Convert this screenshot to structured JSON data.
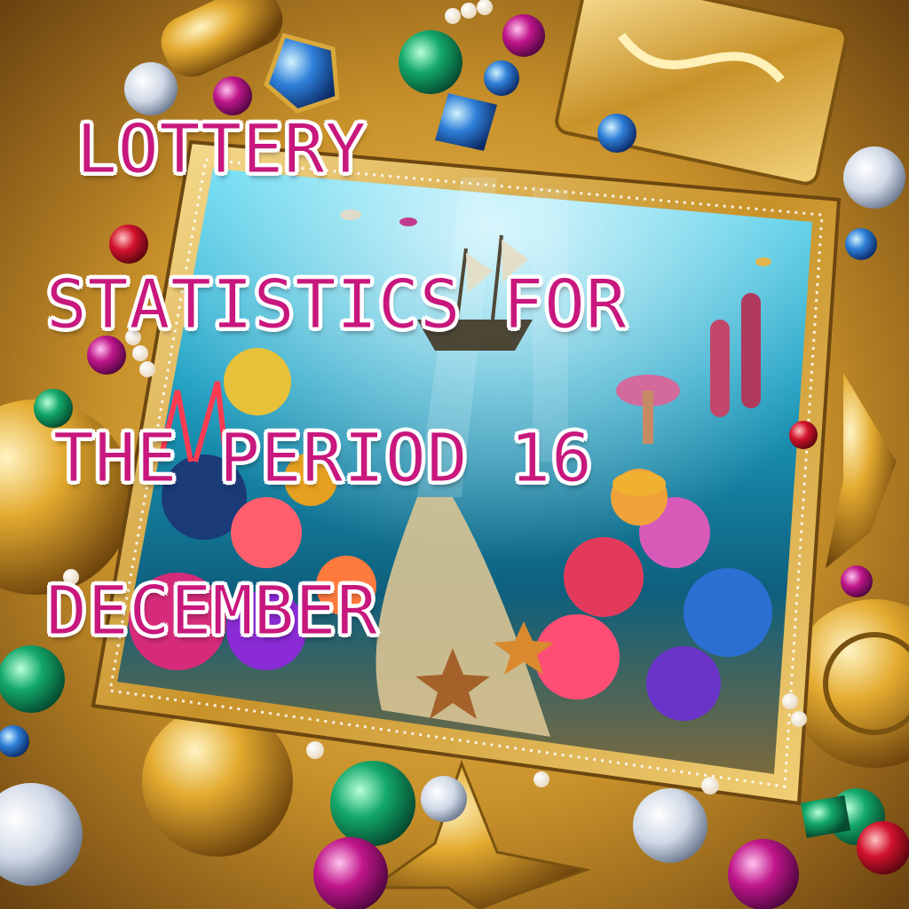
{
  "poster": {
    "title_lines": [
      "LOTTERY",
      "STATISTICS FOR",
      "THE PERIOD 16",
      "DECEMBER"
    ]
  },
  "colors": {
    "title_fill": "#c8177d",
    "title_outline": "#ffffff",
    "gold_frame": "#d8a93a",
    "ocean": "#1fa3c4"
  },
  "scene": {
    "subject": "underwater-reef-painting-in-jeweled-gold-frame"
  }
}
